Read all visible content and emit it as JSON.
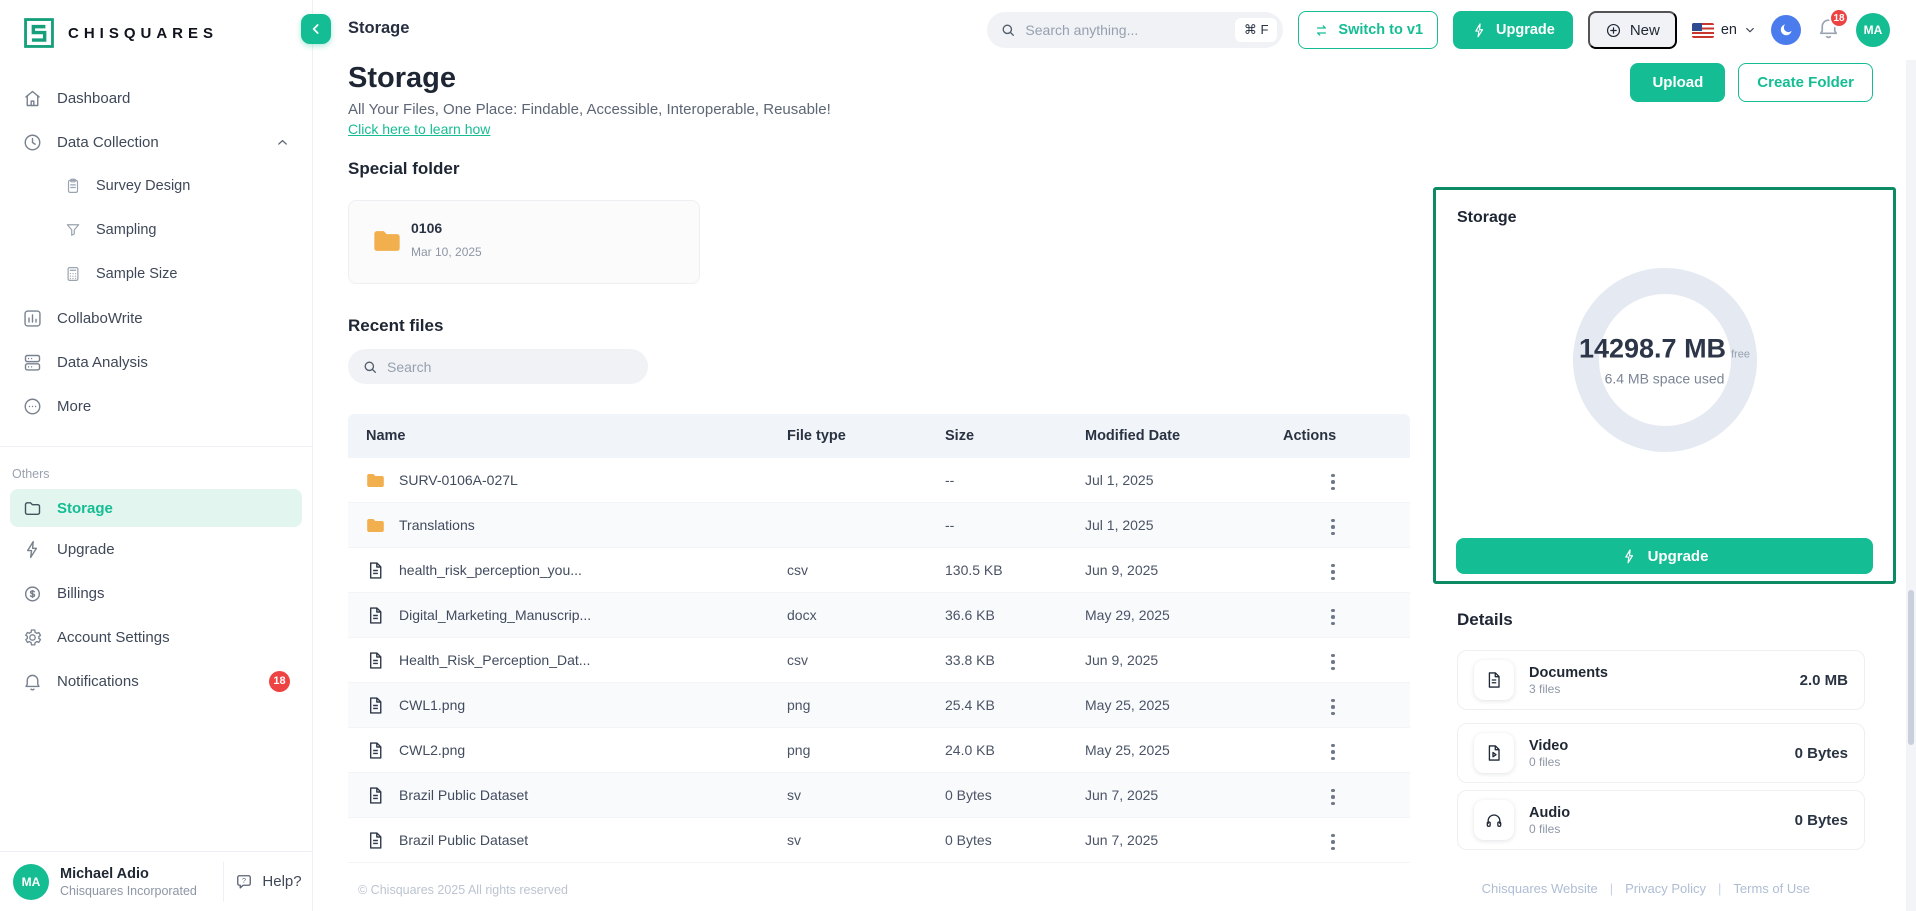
{
  "brand": {
    "name": "CHISQUARES"
  },
  "sidebar": {
    "items": [
      {
        "label": "Dashboard"
      },
      {
        "label": "Data Collection"
      },
      {
        "label": "Survey Design"
      },
      {
        "label": "Sampling"
      },
      {
        "label": "Sample Size"
      },
      {
        "label": "CollaboWrite"
      },
      {
        "label": "Data Analysis"
      },
      {
        "label": "More"
      }
    ],
    "others_label": "Others",
    "others": [
      {
        "label": "Storage"
      },
      {
        "label": "Upgrade"
      },
      {
        "label": "Billings"
      },
      {
        "label": "Account Settings"
      },
      {
        "label": "Notifications",
        "badge": "18"
      }
    ],
    "user": {
      "initials": "MA",
      "name": "Michael Adio",
      "org": "Chisquares Incorporated"
    },
    "help_label": "Help?"
  },
  "topbar": {
    "page_title": "Storage",
    "search_placeholder": "Search anything...",
    "search_shortcut": "⌘ F",
    "switch_label": "Switch to v1",
    "upgrade_label": "Upgrade",
    "new_label": "New",
    "language": "en",
    "notification_count": "18",
    "avatar_initials": "MA"
  },
  "main": {
    "title": "Storage",
    "subtitle": "All Your Files, One Place: Findable, Accessible, Interoperable, Reusable!",
    "learn_link": "Click here to learn how",
    "upload_label": "Upload",
    "create_folder_label": "Create Folder",
    "special_folder_title": "Special folder",
    "special_folder": {
      "name": "0106",
      "date": "Mar 10, 2025"
    },
    "recent_files_title": "Recent files",
    "search_placeholder": "Search",
    "table": {
      "headers": [
        "Name",
        "File type",
        "Size",
        "Modified Date",
        "Actions"
      ],
      "rows": [
        {
          "name": "SURV-0106A-027L",
          "type": "",
          "size": "--",
          "date": "Jul 1, 2025",
          "kind": "folder"
        },
        {
          "name": "Translations",
          "type": "",
          "size": "--",
          "date": "Jul 1, 2025",
          "kind": "folder"
        },
        {
          "name": "health_risk_perception_you...",
          "type": "csv",
          "size": "130.5 KB",
          "date": "Jun 9, 2025",
          "kind": "file"
        },
        {
          "name": "Digital_Marketing_Manuscrip...",
          "type": "docx",
          "size": "36.6 KB",
          "date": "May 29, 2025",
          "kind": "file"
        },
        {
          "name": "Health_Risk_Perception_Dat...",
          "type": "csv",
          "size": "33.8 KB",
          "date": "Jun 9, 2025",
          "kind": "file"
        },
        {
          "name": "CWL1.png",
          "type": "png",
          "size": "25.4 KB",
          "date": "May 25, 2025",
          "kind": "file"
        },
        {
          "name": "CWL2.png",
          "type": "png",
          "size": "24.0 KB",
          "date": "May 25, 2025",
          "kind": "file"
        },
        {
          "name": "Brazil Public Dataset",
          "type": "sv",
          "size": "0 Bytes",
          "date": "Jun 7, 2025",
          "kind": "file"
        },
        {
          "name": "Brazil Public Dataset",
          "type": "sv",
          "size": "0 Bytes",
          "date": "Jun 7, 2025",
          "kind": "file"
        }
      ]
    },
    "footer_left": "© Chisquares 2025 All rights reserved"
  },
  "storage_panel": {
    "title": "Storage",
    "free_value": "14298.7 MB",
    "free_suffix": "free",
    "used_text": "6.4 MB space used",
    "upgrade_label": "Upgrade"
  },
  "details": {
    "title": "Details",
    "items": [
      {
        "label": "Documents",
        "files": "3 files",
        "size": "2.0 MB"
      },
      {
        "label": "Video",
        "files": "0 files",
        "size": "0 Bytes"
      },
      {
        "label": "Audio",
        "files": "0 files",
        "size": "0 Bytes"
      }
    ]
  },
  "footer_links": [
    "Chisquares Website",
    "Privacy Policy",
    "Terms of Use"
  ],
  "colors": {
    "primary_green": "#14BD93",
    "panel_border_green": "#0C8A63",
    "badge_red": "#EE4343",
    "moon_blue": "#4B7CEE",
    "folder_orange": "#F2AF4D"
  }
}
